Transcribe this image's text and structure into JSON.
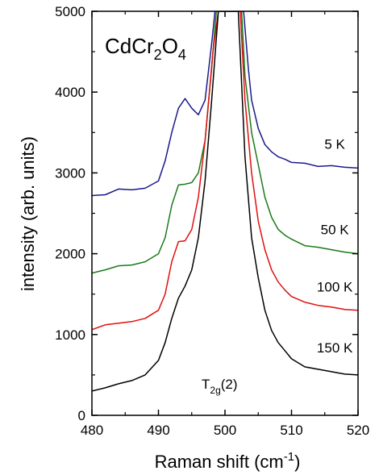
{
  "chart_data": {
    "type": "line",
    "title": "",
    "xlabel": "Raman shift (cm",
    "xlabel_sup": "-1",
    "xlabel_tail": ")",
    "ylabel": "intensity (arb. units)",
    "xlim": [
      480,
      520
    ],
    "ylim": [
      0,
      5000
    ],
    "xticks": [
      480,
      490,
      500,
      510,
      520
    ],
    "yticks": [
      0,
      1000,
      2000,
      3000,
      4000,
      5000
    ],
    "grid": false,
    "legend": "none",
    "annotations": {
      "compound": {
        "base": "CdCr",
        "sub1": "2",
        "mid": "O",
        "sub2": "4"
      },
      "mode": {
        "base": "T",
        "sub": "2g",
        "tail": "(2)"
      }
    },
    "series": [
      {
        "label": "5 K",
        "color": "#1a1a8c",
        "points": [
          [
            480,
            2720
          ],
          [
            482,
            2730
          ],
          [
            484,
            2800
          ],
          [
            486,
            2790
          ],
          [
            488,
            2810
          ],
          [
            490,
            2900
          ],
          [
            491,
            3150
          ],
          [
            492,
            3500
          ],
          [
            493,
            3800
          ],
          [
            494,
            3920
          ],
          [
            495,
            3800
          ],
          [
            496,
            3720
          ],
          [
            497,
            3900
          ],
          [
            498,
            4600
          ],
          [
            498.5,
            5000
          ],
          [
            502.8,
            5000
          ],
          [
            503.5,
            4300
          ],
          [
            504,
            3900
          ],
          [
            505,
            3550
          ],
          [
            506,
            3350
          ],
          [
            507,
            3260
          ],
          [
            508,
            3200
          ],
          [
            509,
            3170
          ],
          [
            510,
            3130
          ],
          [
            512,
            3120
          ],
          [
            514,
            3080
          ],
          [
            516,
            3090
          ],
          [
            518,
            3070
          ],
          [
            520,
            3060
          ]
        ]
      },
      {
        "label": "50 K",
        "color": "#1a7a1a",
        "points": [
          [
            480,
            1760
          ],
          [
            482,
            1800
          ],
          [
            484,
            1850
          ],
          [
            486,
            1860
          ],
          [
            488,
            1900
          ],
          [
            490,
            2000
          ],
          [
            491,
            2200
          ],
          [
            492,
            2600
          ],
          [
            493,
            2850
          ],
          [
            494,
            2860
          ],
          [
            495,
            2880
          ],
          [
            496,
            3000
          ],
          [
            497,
            3400
          ],
          [
            498,
            4300
          ],
          [
            498.7,
            5000
          ],
          [
            502.5,
            5000
          ],
          [
            503,
            4200
          ],
          [
            504,
            3500
          ],
          [
            505,
            3100
          ],
          [
            506,
            2700
          ],
          [
            507,
            2450
          ],
          [
            508,
            2300
          ],
          [
            509,
            2230
          ],
          [
            510,
            2180
          ],
          [
            512,
            2100
          ],
          [
            514,
            2080
          ],
          [
            516,
            2050
          ],
          [
            518,
            2020
          ],
          [
            520,
            2000
          ]
        ]
      },
      {
        "label": "100 K",
        "color": "#e01010",
        "points": [
          [
            480,
            1060
          ],
          [
            482,
            1120
          ],
          [
            484,
            1140
          ],
          [
            486,
            1160
          ],
          [
            488,
            1200
          ],
          [
            490,
            1300
          ],
          [
            491,
            1500
          ],
          [
            492,
            1900
          ],
          [
            493,
            2150
          ],
          [
            494,
            2160
          ],
          [
            495,
            2300
          ],
          [
            496,
            2700
          ],
          [
            497,
            3400
          ],
          [
            498.2,
            4500
          ],
          [
            499,
            5000
          ],
          [
            502.3,
            5000
          ],
          [
            503,
            3900
          ],
          [
            504,
            3000
          ],
          [
            505,
            2400
          ],
          [
            506,
            2050
          ],
          [
            507,
            1800
          ],
          [
            508,
            1650
          ],
          [
            509,
            1550
          ],
          [
            510,
            1470
          ],
          [
            512,
            1400
          ],
          [
            514,
            1360
          ],
          [
            516,
            1340
          ],
          [
            518,
            1310
          ],
          [
            520,
            1300
          ]
        ]
      },
      {
        "label": "150 K",
        "color": "#000000",
        "points": [
          [
            480,
            300
          ],
          [
            482,
            340
          ],
          [
            484,
            390
          ],
          [
            486,
            430
          ],
          [
            488,
            500
          ],
          [
            490,
            680
          ],
          [
            491,
            900
          ],
          [
            492,
            1200
          ],
          [
            493,
            1450
          ],
          [
            494,
            1600
          ],
          [
            495,
            1800
          ],
          [
            496,
            2200
          ],
          [
            497,
            2900
          ],
          [
            498,
            3900
          ],
          [
            499,
            5000
          ],
          [
            502,
            5000
          ],
          [
            503,
            3200
          ],
          [
            504,
            2200
          ],
          [
            505,
            1700
          ],
          [
            506,
            1300
          ],
          [
            507,
            1050
          ],
          [
            508,
            900
          ],
          [
            509,
            800
          ],
          [
            510,
            700
          ],
          [
            512,
            600
          ],
          [
            514,
            570
          ],
          [
            516,
            540
          ],
          [
            518,
            510
          ],
          [
            520,
            500
          ]
        ]
      }
    ],
    "series_labels": [
      {
        "text": "5 K",
        "x": 516.5,
        "y": 3300
      },
      {
        "text": "50 K",
        "x": 516.5,
        "y": 2240
      },
      {
        "text": "100 K",
        "x": 516.5,
        "y": 1530
      },
      {
        "text": "150 K",
        "x": 516.5,
        "y": 780
      }
    ]
  }
}
